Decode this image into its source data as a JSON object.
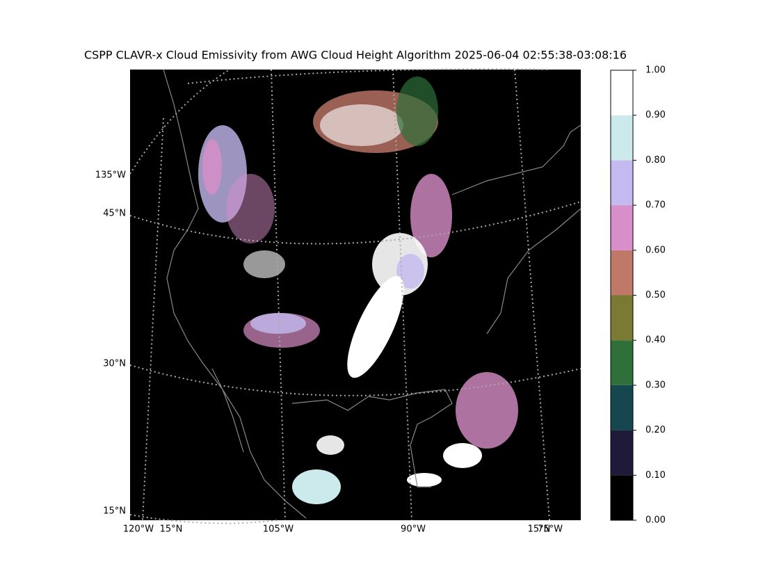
{
  "title": "CSPP CLAVR-x Cloud Emissivity from AWG Cloud Height Algorithm 2025-06-04 02:55:38-03:08:16",
  "map": {
    "left_labels": [
      "135°W",
      "45°N",
      "30°N",
      "15°N"
    ],
    "bottom_labels": [
      "120°W",
      "15°N",
      "105°W",
      "90°W",
      "15°N",
      "75°W"
    ]
  },
  "colorbar": {
    "ticks": [
      {
        "value": 0,
        "label": "0.00"
      },
      {
        "value": 0.1,
        "label": "0.10"
      },
      {
        "value": 0.2,
        "label": "0.20"
      },
      {
        "value": 0.3,
        "label": "0.30"
      },
      {
        "value": 0.4,
        "label": "0.40"
      },
      {
        "value": 0.5,
        "label": "0.50"
      },
      {
        "value": 0.6,
        "label": "0.60"
      },
      {
        "value": 0.7,
        "label": "0.70"
      },
      {
        "value": 0.8,
        "label": "0.80"
      },
      {
        "value": 0.9,
        "label": "0.90"
      },
      {
        "value": 1,
        "label": "1.00"
      }
    ],
    "lim": [
      0,
      1
    ],
    "colors": [
      "#000000",
      "#1f1a3a",
      "#17474e",
      "#2e6f3a",
      "#7a7a34",
      "#c07868",
      "#d88ec8",
      "#c4baf0",
      "#cce9ec",
      "#ffffff"
    ]
  }
}
